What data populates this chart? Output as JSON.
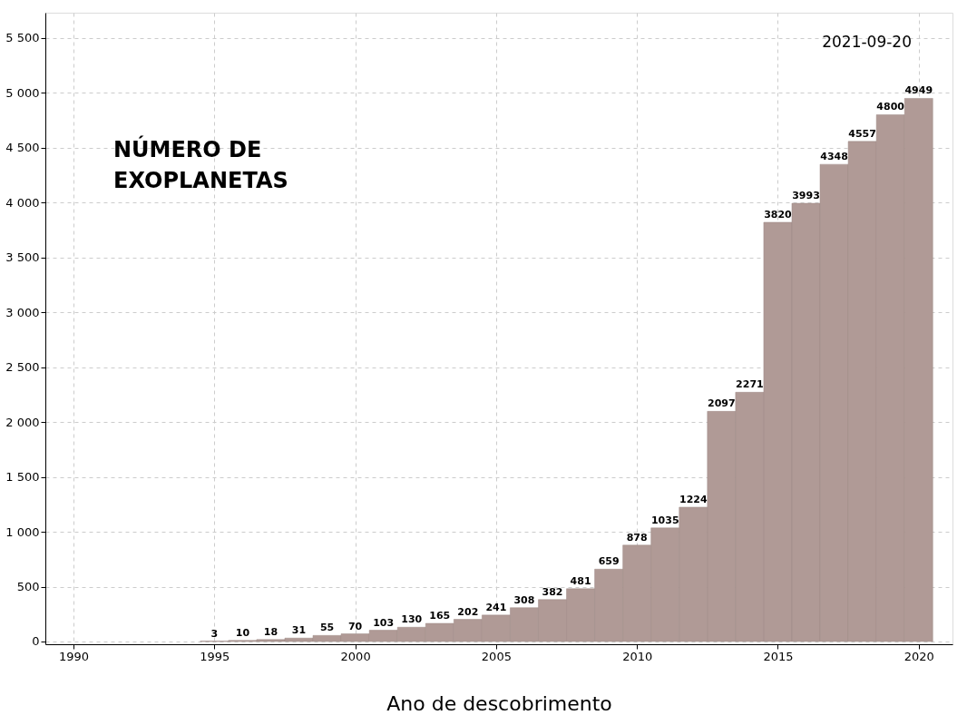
{
  "chart_data": {
    "type": "bar",
    "title": "NÚMERO DE\nEXOPLANETAS",
    "xlabel": "Ano de descobrimento",
    "annotations": [
      "2021-09-20"
    ],
    "x": [
      1995,
      1996,
      1997,
      1998,
      1999,
      2000,
      2001,
      2002,
      2003,
      2004,
      2005,
      2006,
      2007,
      2008,
      2009,
      2010,
      2011,
      2012,
      2013,
      2014,
      2015,
      2016,
      2017,
      2018,
      2019,
      2020
    ],
    "values": [
      3,
      10,
      18,
      31,
      55,
      70,
      103,
      130,
      165,
      202,
      241,
      308,
      382,
      481,
      659,
      878,
      1035,
      1224,
      2097,
      2271,
      3820,
      3993,
      4348,
      4557,
      4800,
      4949
    ],
    "color": "#b09a96",
    "data_labels": true,
    "xlim": [
      1989,
      2021.2
    ],
    "xticks": [
      1990,
      1995,
      2000,
      2005,
      2010,
      2015,
      2020
    ],
    "ylim": [
      -25,
      5730
    ],
    "yticks": [
      {
        "value": 0,
        "label": "0"
      },
      {
        "value": 500,
        "label": "500"
      },
      {
        "value": 1000,
        "label": "1 000"
      },
      {
        "value": 1500,
        "label": "1 500"
      },
      {
        "value": 2000,
        "label": "2 000"
      },
      {
        "value": 2500,
        "label": "2 500"
      },
      {
        "value": 3000,
        "label": "3 000"
      },
      {
        "value": 3500,
        "label": "3 500"
      },
      {
        "value": 4000,
        "label": "4 000"
      },
      {
        "value": 4500,
        "label": "4 500"
      },
      {
        "value": 5000,
        "label": "5 000"
      },
      {
        "value": 5500,
        "label": "5 500"
      }
    ],
    "grid": true
  }
}
